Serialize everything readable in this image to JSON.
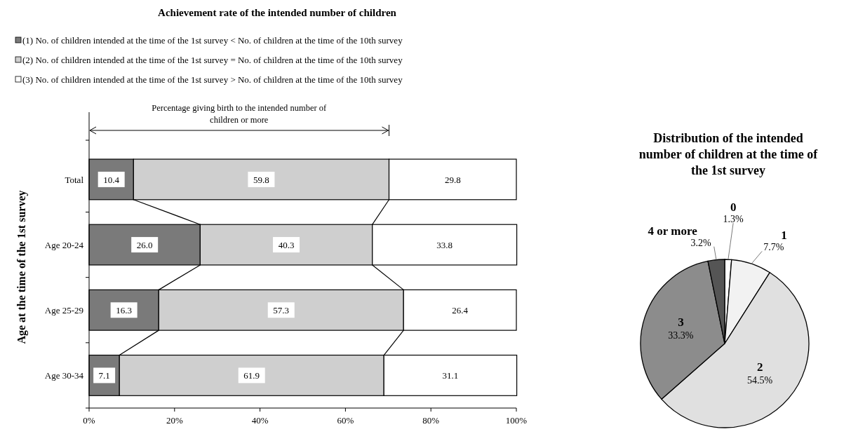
{
  "chart_data": [
    {
      "type": "bar",
      "title": "Achievement rate of the intended number of children",
      "ylabel": "Age at the time of the 1st survey",
      "orientation": "horizontal",
      "stacked": true,
      "legend": "top",
      "categories": [
        "Total",
        "Age 20-24",
        "Age 25-29",
        "Age 30-34"
      ],
      "series": [
        {
          "name": "(1) No. of children intended at the time of the 1st survey < No. of children at the time of the 10th survey",
          "color": "#7a7a7a",
          "values": [
            10.4,
            26.0,
            16.3,
            7.1
          ],
          "value_labels": [
            "10.4",
            "26.0",
            "16.3",
            "7.1"
          ]
        },
        {
          "name": "(2) No. of children intended at the time of the 1st survey = No. of children at the time of the 10th survey",
          "color": "#cfcfcf",
          "values": [
            59.8,
            40.3,
            57.3,
            61.9
          ],
          "value_labels": [
            "59.8",
            "40.3",
            "57.3",
            "61.9"
          ]
        },
        {
          "name": "(3) No. of children intended at the time of the 1st survey > No. of children at the time of the 10th survey",
          "color": "#ffffff",
          "values": [
            29.8,
            33.8,
            26.4,
            31.1
          ],
          "value_labels": [
            "29.8",
            "33.8",
            "26.4",
            "31.1"
          ]
        }
      ],
      "xlim": [
        0,
        100
      ],
      "xticks": [
        {
          "value": 0,
          "label": "0%"
        },
        {
          "value": 20,
          "label": "20%"
        },
        {
          "value": 40,
          "label": "40%"
        },
        {
          "value": 60,
          "label": "60%"
        },
        {
          "value": 80,
          "label": "80%"
        },
        {
          "value": 100,
          "label": "100%"
        }
      ],
      "annotations": [
        "Percentage giving birth to the intended number of children or more"
      ]
    },
    {
      "type": "pie",
      "title": "Distribution of the intended number of children at the time of the 1st survey",
      "categories": [
        "0",
        "1",
        "2",
        "3",
        "4 or more"
      ],
      "values": [
        1.3,
        7.7,
        54.5,
        33.3,
        3.2
      ],
      "colors": [
        "#ffffff",
        "#f2f2f2",
        "#e0e0e0",
        "#8c8c8c",
        "#555555"
      ],
      "value_labels": [
        "1.3%",
        "7.7%",
        "54.5%",
        "33.3%",
        "3.2%"
      ]
    }
  ]
}
